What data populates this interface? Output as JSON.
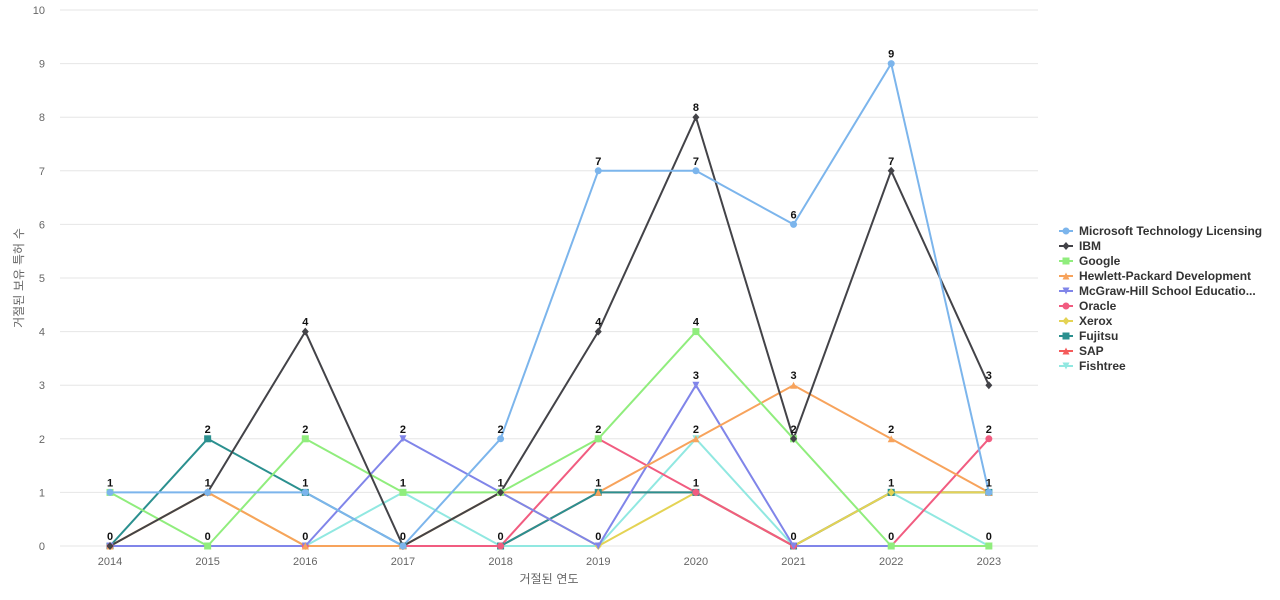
{
  "chart_data": {
    "type": "line",
    "title": "",
    "xlabel": "거절된 연도",
    "ylabel": "거절된 보유 특허 수",
    "x": [
      "2014",
      "2015",
      "2016",
      "2017",
      "2018",
      "2019",
      "2020",
      "2021",
      "2022",
      "2023"
    ],
    "ylim": [
      0,
      10
    ],
    "yticks": [
      0,
      1,
      2,
      3,
      4,
      5,
      6,
      7,
      8,
      9,
      10
    ],
    "grid": true,
    "legend_position": "right",
    "series": [
      {
        "name": "Microsoft Technology Licensing",
        "color": "#7cb5ec",
        "marker": "circle",
        "values": [
          1,
          1,
          1,
          0,
          2,
          7,
          7,
          6,
          9,
          1
        ]
      },
      {
        "name": "IBM",
        "color": "#434348",
        "marker": "diamond",
        "values": [
          0,
          1,
          4,
          0,
          1,
          4,
          8,
          2,
          7,
          3
        ]
      },
      {
        "name": "Google",
        "color": "#90ed7d",
        "marker": "square",
        "values": [
          1,
          0,
          2,
          1,
          1,
          2,
          4,
          2,
          0,
          0
        ]
      },
      {
        "name": "Hewlett-Packard Development",
        "color": "#f7a35c",
        "marker": "triangle",
        "values": [
          0,
          1,
          0,
          0,
          1,
          1,
          2,
          3,
          2,
          1
        ]
      },
      {
        "name": "McGraw-Hill School Educatio...",
        "color": "#8085e9",
        "marker": "triangle-down",
        "values": [
          0,
          0,
          0,
          2,
          1,
          0,
          3,
          0,
          0,
          0
        ]
      },
      {
        "name": "Oracle",
        "color": "#f15c80",
        "marker": "circle",
        "values": [
          0,
          0,
          0,
          0,
          0,
          2,
          1,
          0,
          0,
          2
        ]
      },
      {
        "name": "Xerox",
        "color": "#e4d354",
        "marker": "diamond",
        "values": [
          0,
          1,
          0,
          0,
          1,
          0,
          1,
          0,
          1,
          1
        ]
      },
      {
        "name": "Fujitsu",
        "color": "#2b908f",
        "marker": "square",
        "values": [
          0,
          2,
          1,
          0,
          0,
          1,
          1,
          0,
          1,
          1
        ]
      },
      {
        "name": "SAP",
        "color": "#f45b5b",
        "marker": "triangle",
        "values": [
          0,
          0,
          0,
          0,
          0,
          1,
          1,
          0,
          1,
          1
        ]
      },
      {
        "name": "Fishtree",
        "color": "#91e8e1",
        "marker": "triangle-down",
        "values": [
          0,
          0,
          0,
          1,
          0,
          0,
          2,
          0,
          1,
          0
        ]
      }
    ],
    "data_labels": [
      {
        "x": "2014",
        "label": "1",
        "series": "Microsoft Technology Licensing"
      },
      {
        "x": "2014",
        "label": "0",
        "series": "IBM"
      },
      {
        "x": "2015",
        "label": "2",
        "series": "Fujitsu"
      },
      {
        "x": "2015",
        "label": "1",
        "series": "IBM"
      },
      {
        "x": "2015",
        "label": "0",
        "series": "Google"
      },
      {
        "x": "2016",
        "label": "4",
        "series": "IBM"
      },
      {
        "x": "2016",
        "label": "2",
        "series": "Google"
      },
      {
        "x": "2016",
        "label": "1",
        "series": "Microsoft Technology Licensing"
      },
      {
        "x": "2016",
        "label": "0",
        "series": "Hewlett-Packard Development"
      },
      {
        "x": "2017",
        "label": "2",
        "series": "McGraw-Hill School Educatio..."
      },
      {
        "x": "2017",
        "label": "1",
        "series": "Google"
      },
      {
        "x": "2017",
        "label": "0",
        "series": "IBM"
      },
      {
        "x": "2018",
        "label": "2",
        "series": "Microsoft Technology Licensing"
      },
      {
        "x": "2018",
        "label": "1",
        "series": "IBM"
      },
      {
        "x": "2018",
        "label": "0",
        "series": "Oracle"
      },
      {
        "x": "2019",
        "label": "7",
        "series": "Microsoft Technology Licensing"
      },
      {
        "x": "2019",
        "label": "4",
        "series": "IBM"
      },
      {
        "x": "2019",
        "label": "2",
        "series": "Oracle"
      },
      {
        "x": "2019",
        "label": "1",
        "series": "SAP"
      },
      {
        "x": "2019",
        "label": "0",
        "series": "Xerox"
      },
      {
        "x": "2020",
        "label": "8",
        "series": "IBM"
      },
      {
        "x": "2020",
        "label": "7",
        "series": "Microsoft Technology Licensing"
      },
      {
        "x": "2020",
        "label": "4",
        "series": "Google"
      },
      {
        "x": "2020",
        "label": "3",
        "series": "McGraw-Hill School Educatio..."
      },
      {
        "x": "2020",
        "label": "2",
        "series": "Fishtree"
      },
      {
        "x": "2020",
        "label": "1",
        "series": "SAP"
      },
      {
        "x": "2021",
        "label": "6",
        "series": "Microsoft Technology Licensing"
      },
      {
        "x": "2021",
        "label": "3",
        "series": "Hewlett-Packard Development"
      },
      {
        "x": "2021",
        "label": "2",
        "series": "IBM"
      },
      {
        "x": "2021",
        "label": "0",
        "series": "Oracle"
      },
      {
        "x": "2022",
        "label": "9",
        "series": "Microsoft Technology Licensing"
      },
      {
        "x": "2022",
        "label": "7",
        "series": "IBM"
      },
      {
        "x": "2022",
        "label": "2",
        "series": "Hewlett-Packard Development"
      },
      {
        "x": "2022",
        "label": "1",
        "series": "Fujitsu"
      },
      {
        "x": "2022",
        "label": "0",
        "series": "Oracle"
      },
      {
        "x": "2023",
        "label": "3",
        "series": "IBM"
      },
      {
        "x": "2023",
        "label": "2",
        "series": "Oracle"
      },
      {
        "x": "2023",
        "label": "1",
        "series": "Fujitsu"
      },
      {
        "x": "2023",
        "label": "0",
        "series": "Google"
      }
    ]
  }
}
